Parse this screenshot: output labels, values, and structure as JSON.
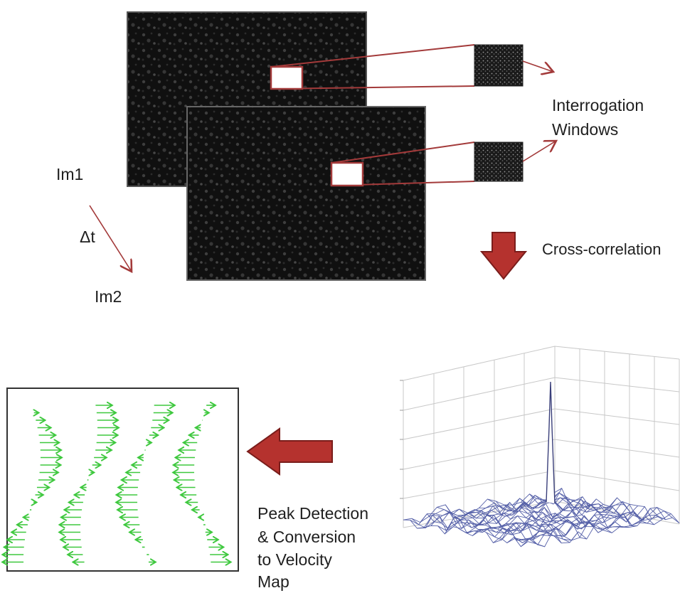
{
  "labels": {
    "im1": "Im1",
    "dt": "Δt",
    "im2": "Im2",
    "interrogation_line1": "Interrogation",
    "interrogation_line2": "Windows",
    "cross_correlation": "Cross-correlation",
    "peak_line1": "Peak Detection",
    "peak_line2": "& Conversion",
    "peak_line3": "to Velocity",
    "peak_line4": "Map"
  },
  "colors": {
    "frame_dark": "#0f0f0f",
    "speckle": "#4a4a4a",
    "callout_line": "#a33a3a",
    "block_arrow_fill": "#b5322e",
    "block_arrow_edge": "#7a1d1b",
    "vector_green": "#3ec83e",
    "mesh_blue": "#5560a8",
    "grid_gray": "#bdbdbd"
  },
  "icons": {
    "process_arrow_down": "red-block-arrow-down",
    "process_arrow_left": "red-block-arrow-left",
    "time_step_arrow": "thin-diagonal-arrow"
  }
}
